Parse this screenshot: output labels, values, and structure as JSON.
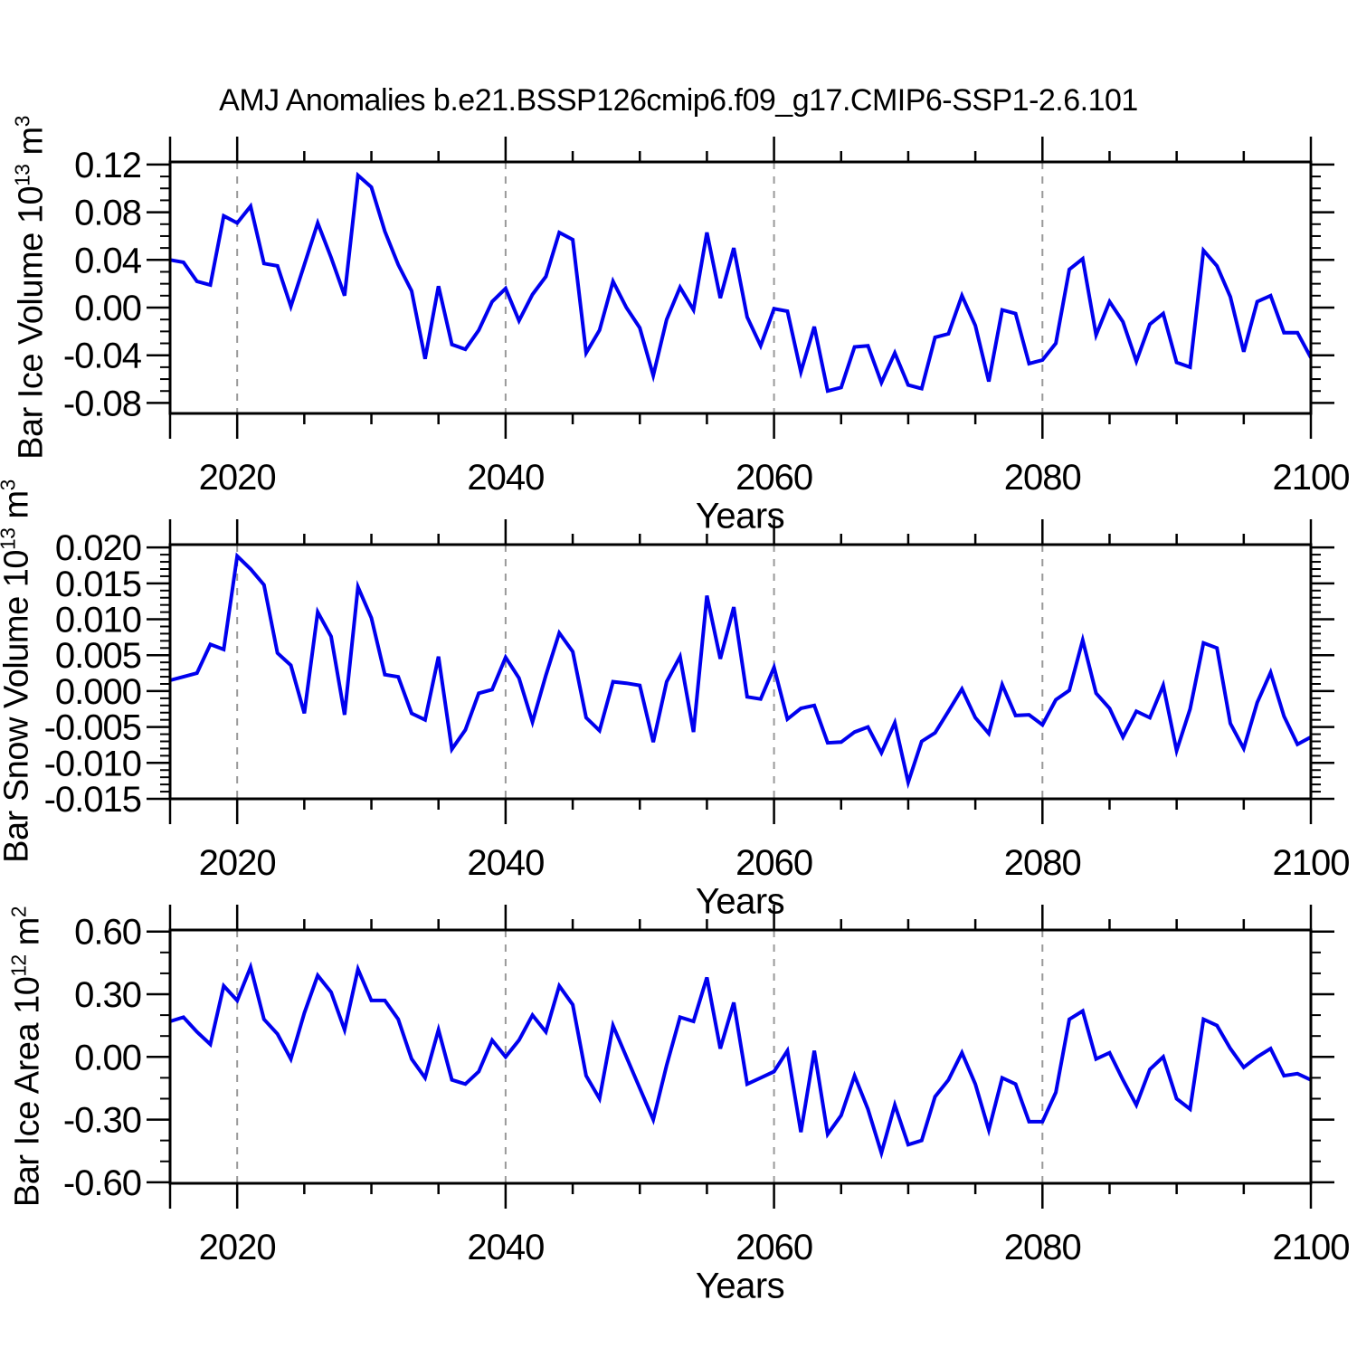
{
  "title": "AMJ Anomalies b.e21.BSSP126cmip6.f09_g17.CMIP6-SSP1-2.6.101",
  "colors": {
    "line": "#0000EE",
    "grid": "#999999",
    "frame": "#000000",
    "text": "#000000"
  },
  "x_axis": {
    "label": "Years",
    "range": [
      2015,
      2100
    ],
    "major_ticks": [
      2020,
      2040,
      2060,
      2080,
      2100
    ],
    "tick_labels": [
      "2020",
      "2040",
      "2060",
      "2080",
      "2100"
    ],
    "minor_step": 5,
    "dashed_gridlines": [
      2020,
      2040,
      2060,
      2080
    ]
  },
  "chart_data": [
    {
      "name": "ice-volume",
      "type": "line",
      "ylabel_parts": {
        "text": "Bar Ice Volume 10",
        "exp": "13",
        "unit": " m",
        "unit_exp": "3"
      },
      "ylim": [
        -0.0888,
        0.1222
      ],
      "ytick_values": [
        0.12,
        0.08,
        0.04,
        0.0,
        -0.04,
        -0.08
      ],
      "ytick_labels": [
        "0.12",
        "0.08",
        "0.04",
        "0.00",
        "-0.04",
        "-0.08"
      ],
      "y_minor_step": 0.01,
      "x_start": 2015,
      "values": [
        0.04,
        0.038,
        0.022,
        0.019,
        0.077,
        0.071,
        0.085,
        0.037,
        0.035,
        0.001,
        0.036,
        0.071,
        0.042,
        0.01,
        0.111,
        0.101,
        0.064,
        0.036,
        0.014,
        -0.043,
        0.018,
        -0.031,
        -0.035,
        -0.019,
        0.005,
        0.016,
        -0.011,
        0.011,
        0.026,
        0.063,
        0.057,
        -0.038,
        -0.019,
        0.022,
        0.0,
        -0.017,
        -0.057,
        -0.01,
        0.017,
        -0.002,
        0.063,
        0.008,
        0.05,
        -0.008,
        -0.032,
        -0.001,
        -0.003,
        -0.054,
        -0.016,
        -0.07,
        -0.067,
        -0.033,
        -0.032,
        -0.063,
        -0.038,
        -0.065,
        -0.068,
        -0.025,
        -0.022,
        0.01,
        -0.015,
        -0.062,
        -0.002,
        -0.005,
        -0.047,
        -0.044,
        -0.03,
        0.032,
        0.041,
        -0.023,
        0.005,
        -0.012,
        -0.045,
        -0.014,
        -0.005,
        -0.046,
        -0.05,
        0.048,
        0.035,
        0.009,
        -0.037,
        0.005,
        0.01,
        -0.021,
        -0.021,
        -0.042
      ]
    },
    {
      "name": "snow-volume",
      "type": "line",
      "ylabel_parts": {
        "text": "Bar Snow Volume 10",
        "exp": "13",
        "unit": " m",
        "unit_exp": "3"
      },
      "ylim": [
        -0.015,
        0.0204
      ],
      "ytick_values": [
        0.02,
        0.015,
        0.01,
        0.005,
        0.0,
        -0.005,
        -0.01,
        -0.015
      ],
      "ytick_labels": [
        "0.020",
        "0.015",
        "0.010",
        "0.005",
        "0.000",
        "-0.005",
        "-0.010",
        "-0.015"
      ],
      "y_minor_step": 0.001,
      "x_start": 2015,
      "values": [
        0.0015,
        0.002,
        0.0025,
        0.0065,
        0.0058,
        0.0188,
        0.017,
        0.0148,
        0.0053,
        0.0036,
        -0.0031,
        0.011,
        0.0076,
        -0.0033,
        0.0145,
        0.0102,
        0.0023,
        0.002,
        -0.0031,
        -0.004,
        0.0048,
        -0.0081,
        -0.0054,
        -0.0003,
        0.0002,
        0.0047,
        0.0018,
        -0.0043,
        0.0022,
        0.0081,
        0.0055,
        -0.0037,
        -0.0055,
        0.0013,
        0.0011,
        0.0008,
        -0.0071,
        0.0013,
        0.0048,
        -0.0057,
        0.0133,
        0.0045,
        0.0117,
        -0.0008,
        -0.0011,
        0.0033,
        -0.0039,
        -0.0024,
        -0.002,
        -0.0072,
        -0.0071,
        -0.0057,
        -0.005,
        -0.0086,
        -0.0044,
        -0.0127,
        -0.007,
        -0.0058,
        -0.0028,
        0.0003,
        -0.0037,
        -0.0059,
        0.0009,
        -0.0034,
        -0.0033,
        -0.0047,
        -0.0012,
        0.0001,
        0.0071,
        -0.0003,
        -0.0024,
        -0.0064,
        -0.0028,
        -0.0037,
        0.0008,
        -0.0083,
        -0.0025,
        0.0067,
        0.006,
        -0.0045,
        -0.008,
        -0.0016,
        0.0026,
        -0.0035,
        -0.0074,
        -0.0064
      ]
    },
    {
      "name": "ice-area",
      "type": "line",
      "ylabel_parts": {
        "text": "Bar Ice Area 10",
        "exp": "12",
        "unit": " m",
        "unit_exp": "2"
      },
      "ylim": [
        -0.605,
        0.6075
      ],
      "ytick_values": [
        0.6,
        0.3,
        0.0,
        -0.3,
        -0.6
      ],
      "ytick_labels": [
        "0.60",
        "0.30",
        "0.00",
        "-0.30",
        "-0.60"
      ],
      "y_minor_step": 0.1,
      "x_start": 2015,
      "values": [
        0.17,
        0.19,
        0.12,
        0.06,
        0.34,
        0.27,
        0.43,
        0.18,
        0.11,
        -0.01,
        0.21,
        0.39,
        0.31,
        0.13,
        0.42,
        0.27,
        0.27,
        0.18,
        -0.01,
        -0.1,
        0.13,
        -0.11,
        -0.13,
        -0.07,
        0.08,
        0.0,
        0.08,
        0.2,
        0.12,
        0.34,
        0.25,
        -0.09,
        -0.2,
        0.15,
        0.0,
        -0.15,
        -0.3,
        -0.04,
        0.19,
        0.17,
        0.38,
        0.04,
        0.26,
        -0.13,
        -0.1,
        -0.07,
        0.03,
        -0.36,
        0.03,
        -0.37,
        -0.28,
        -0.09,
        -0.25,
        -0.46,
        -0.23,
        -0.42,
        -0.4,
        -0.19,
        -0.11,
        0.02,
        -0.13,
        -0.35,
        -0.1,
        -0.13,
        -0.31,
        -0.31,
        -0.17,
        0.18,
        0.22,
        -0.01,
        0.02,
        -0.11,
        -0.23,
        -0.06,
        0.0,
        -0.2,
        -0.25,
        0.18,
        0.15,
        0.04,
        -0.05,
        0.0,
        0.04,
        -0.09,
        -0.08,
        -0.11
      ]
    }
  ]
}
